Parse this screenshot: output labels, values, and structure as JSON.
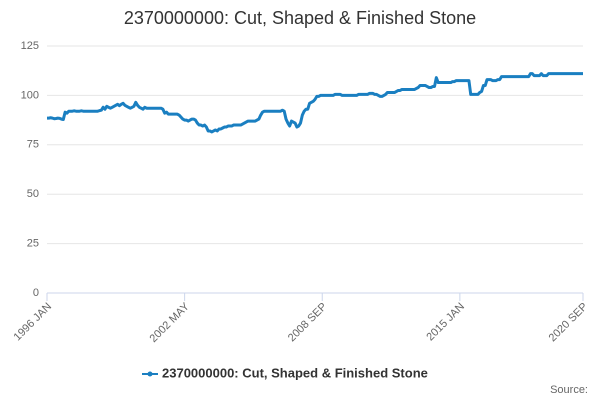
{
  "chart_data": {
    "type": "line",
    "title": "2370000000: Cut, Shaped & Finished Stone",
    "source": "Source:",
    "categories": [
      "1996 JAN",
      null,
      null,
      null,
      null,
      null,
      null,
      null,
      null,
      null,
      null,
      null,
      null,
      null,
      null,
      null,
      null,
      null,
      null,
      null,
      null,
      null,
      null,
      null,
      null,
      null,
      null,
      null,
      null,
      null,
      null,
      null,
      null,
      null,
      null,
      null,
      null,
      null,
      null,
      null,
      null,
      null,
      null,
      null,
      null,
      null,
      null,
      null,
      null,
      null,
      null,
      null,
      null,
      null,
      null,
      null,
      null,
      null,
      null,
      null,
      null,
      null,
      null,
      null,
      null,
      null,
      null,
      null,
      null,
      null,
      null,
      null,
      null,
      null,
      null,
      null,
      "2002 MAY",
      null,
      null,
      null,
      null,
      null,
      null,
      null,
      null,
      null,
      null,
      null,
      null,
      null,
      null,
      null,
      null,
      null,
      null,
      null,
      null,
      null,
      null,
      null,
      null,
      null,
      null,
      null,
      null,
      null,
      null,
      null,
      null,
      null,
      null,
      null,
      null,
      null,
      null,
      null,
      null,
      null,
      null,
      null,
      null,
      null,
      null,
      null,
      null,
      null,
      null,
      null,
      null,
      null,
      null,
      null,
      null,
      null,
      null,
      null,
      null,
      null,
      null,
      null,
      null,
      null,
      null,
      null,
      null,
      null,
      null,
      null,
      null,
      null,
      null,
      null,
      "2008 SEP",
      null,
      null,
      null,
      null,
      null,
      null,
      null,
      null,
      null,
      null,
      null,
      null,
      null,
      null,
      null,
      null,
      null,
      null,
      null,
      null,
      null,
      null,
      null,
      null,
      null,
      null,
      null,
      null,
      null,
      null,
      null,
      null,
      null,
      null,
      null,
      null,
      null,
      null,
      null,
      null,
      null,
      null,
      null,
      null,
      null,
      null,
      null,
      null,
      null,
      null,
      null,
      null,
      null,
      null,
      null,
      null,
      null,
      null,
      null,
      null,
      null,
      null,
      null,
      null,
      null,
      null,
      null,
      null,
      null,
      null,
      null,
      null,
      null,
      null,
      null,
      "2015 JAN",
      null,
      null,
      null,
      null,
      null,
      null,
      null,
      null,
      null,
      null,
      null,
      null,
      null,
      null,
      null,
      null,
      null,
      null,
      null,
      null,
      null,
      null,
      null,
      null,
      null,
      null,
      null,
      null,
      null,
      null,
      null,
      null,
      null,
      null,
      null,
      null,
      null,
      null,
      null,
      null,
      null,
      null,
      null,
      null,
      null,
      null,
      null,
      null,
      null,
      null,
      null,
      null,
      null,
      null,
      null,
      null,
      null,
      null,
      null,
      null,
      null,
      null,
      null,
      null,
      null,
      null,
      null,
      "2020 SEP"
    ],
    "series": [
      {
        "name": "2370000000: Cut, Shaped & Finished Stone",
        "color": "#1a7fc1",
        "values": [
          88.5,
          88.5,
          88.7,
          88.5,
          88.2,
          88.3,
          88.5,
          88.4,
          88,
          87.8,
          91.5,
          91,
          92,
          92,
          92,
          92.2,
          92,
          92,
          92,
          92.2,
          92,
          92,
          92,
          92,
          92,
          92,
          92,
          92,
          92,
          92.3,
          92.5,
          94,
          93,
          94.5,
          94,
          93.5,
          94,
          94.5,
          95,
          95.5,
          94.8,
          95.5,
          96,
          95,
          94.5,
          94,
          93.5,
          94,
          94.5,
          96.5,
          95,
          94,
          93.5,
          93,
          94,
          93.5,
          93.5,
          93.5,
          93.5,
          93.5,
          93.5,
          93.5,
          93.5,
          93.5,
          93,
          91,
          91.5,
          90.5,
          90.5,
          90.5,
          90.5,
          90.5,
          90.5,
          90,
          89,
          88,
          87.5,
          87.5,
          87,
          87.5,
          88,
          88,
          87.5,
          86,
          85,
          85,
          84.5,
          85,
          84,
          82,
          82,
          81.5,
          82,
          82.5,
          82,
          83,
          83,
          83.5,
          84,
          84,
          84.5,
          84.5,
          84.5,
          85,
          85,
          85,
          85,
          85,
          85.5,
          86,
          86.5,
          87,
          87,
          87,
          87,
          87,
          87.5,
          88,
          90,
          91.5,
          92,
          92,
          92,
          92,
          92,
          92,
          92,
          92,
          92,
          92,
          92.5,
          92,
          88,
          86,
          84.5,
          87,
          86.5,
          86,
          84,
          84.5,
          86,
          90,
          92,
          93,
          93,
          96,
          96.5,
          97,
          98,
          99.5,
          99.5,
          100,
          100,
          100,
          100,
          100,
          100,
          100,
          100,
          100.5,
          100.5,
          100.5,
          100.5,
          100,
          100,
          100,
          100,
          100,
          100,
          100,
          100,
          100,
          100.5,
          100.5,
          100.5,
          100.5,
          100.5,
          100.5,
          101,
          101,
          101,
          100.5,
          100.5,
          100,
          99.5,
          99.5,
          100,
          100.5,
          101.5,
          101.5,
          101.5,
          101.5,
          101.5,
          102,
          102.5,
          102.5,
          103,
          103,
          103,
          103,
          103,
          103,
          103,
          103,
          103.5,
          104,
          105,
          105,
          105,
          105,
          104.5,
          104,
          104,
          104.5,
          104.5,
          109,
          106.5,
          106.5,
          106.5,
          106.5,
          106.5,
          106.5,
          106.5,
          106.5,
          107,
          107,
          107.5,
          107.5,
          107.5,
          107.5,
          107.5,
          107.5,
          107.5,
          107.5,
          100.5,
          100.5,
          100.5,
          100.5,
          100.5,
          101.5,
          102,
          105,
          105,
          108,
          108,
          108,
          107.5,
          107.5,
          107.5,
          108,
          108,
          109.5,
          109.5,
          109.5,
          109.5,
          109.5,
          109.5,
          109.5,
          109.5,
          109.5,
          109.5,
          109.5,
          109.5,
          109.5,
          109.5,
          109.5,
          109.5,
          111,
          111,
          110,
          110,
          110,
          110,
          111,
          110,
          110,
          110,
          111,
          111,
          111,
          111,
          111,
          111,
          111,
          111,
          111,
          111,
          111,
          111,
          111,
          111,
          111,
          111,
          111,
          111,
          111,
          111
        ]
      }
    ],
    "ylim": [
      0,
      125
    ],
    "yticks": [
      0,
      25,
      50,
      75,
      100,
      125
    ],
    "grid": true,
    "legend": "bottom"
  }
}
